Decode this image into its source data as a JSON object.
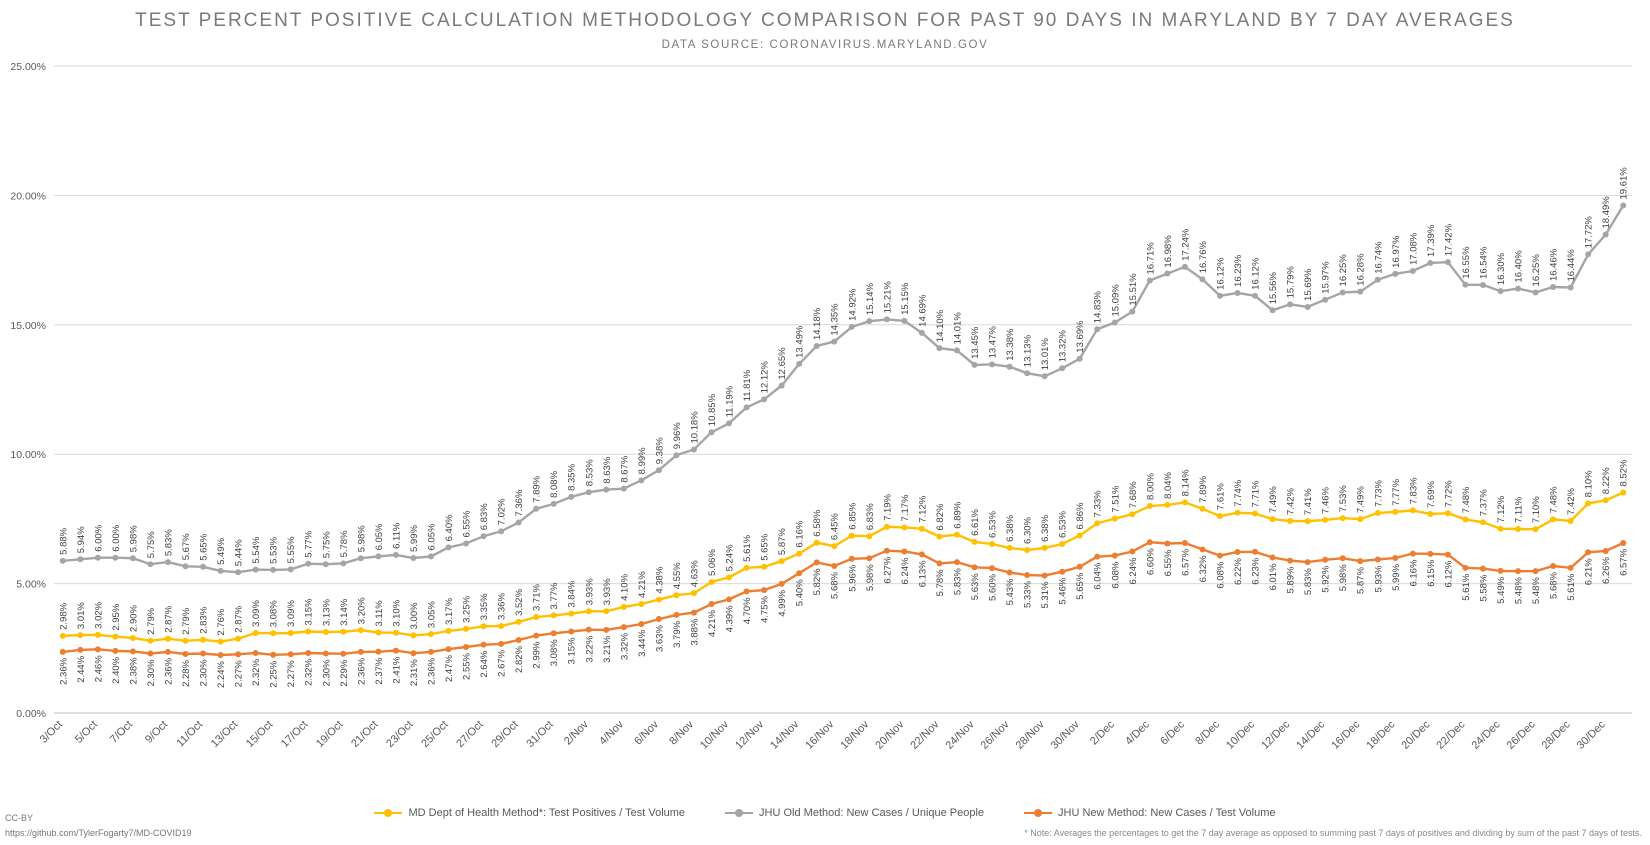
{
  "title": "TEST PERCENT POSITIVE CALCULATION METHODOLOGY COMPARISON FOR PAST 90 DAYS IN MARYLAND BY 7 DAY AVERAGES",
  "subtitle": "DATA SOURCE: CORONAVIRUS.MARYLAND.GOV",
  "cc_label": "CC-BY",
  "source_link": "https://github.com/TylerFogarty7/MD-COVID19",
  "footnote": "* Note: Averages the percentages to get the 7 day average as opposed to summing past 7 days of positives and dividing by sum of the past 7 days of tests.",
  "chart_data": {
    "type": "line",
    "title": "TEST PERCENT POSITIVE CALCULATION METHODOLOGY COMPARISON FOR PAST 90 DAYS IN MARYLAND BY 7 DAY AVERAGES",
    "ylim": [
      0,
      25
    ],
    "yticks": [
      "0.00%",
      "5.00%",
      "10.00%",
      "15.00%",
      "20.00%",
      "25.00%"
    ],
    "grid": true,
    "legend_position": "bottom",
    "x": [
      "3/Oct",
      "4/Oct",
      "5/Oct",
      "6/Oct",
      "7/Oct",
      "8/Oct",
      "9/Oct",
      "10/Oct",
      "11/Oct",
      "12/Oct",
      "13/Oct",
      "14/Oct",
      "15/Oct",
      "16/Oct",
      "17/Oct",
      "18/Oct",
      "19/Oct",
      "20/Oct",
      "21/Oct",
      "22/Oct",
      "23/Oct",
      "24/Oct",
      "25/Oct",
      "26/Oct",
      "27/Oct",
      "28/Oct",
      "29/Oct",
      "30/Oct",
      "31/Oct",
      "1/Nov",
      "2/Nov",
      "3/Nov",
      "4/Nov",
      "5/Nov",
      "6/Nov",
      "7/Nov",
      "8/Nov",
      "9/Nov",
      "10/Nov",
      "11/Nov",
      "12/Nov",
      "13/Nov",
      "14/Nov",
      "15/Nov",
      "16/Nov",
      "17/Nov",
      "18/Nov",
      "19/Nov",
      "20/Nov",
      "21/Nov",
      "22/Nov",
      "23/Nov",
      "24/Nov",
      "25/Nov",
      "26/Nov",
      "27/Nov",
      "28/Nov",
      "29/Nov",
      "30/Nov",
      "1/Dec",
      "2/Dec",
      "3/Dec",
      "4/Dec",
      "5/Dec",
      "6/Dec",
      "7/Dec",
      "8/Dec",
      "9/Dec",
      "10/Dec",
      "11/Dec",
      "12/Dec",
      "13/Dec",
      "14/Dec",
      "15/Dec",
      "16/Dec",
      "17/Dec",
      "18/Dec",
      "19/Dec",
      "20/Dec",
      "21/Dec",
      "22/Dec",
      "23/Dec",
      "24/Dec",
      "25/Dec",
      "26/Dec",
      "27/Dec",
      "28/Dec",
      "29/Dec",
      "30/Dec",
      "31/Dec"
    ],
    "xtick_labels": [
      "3/Oct",
      "5/Oct",
      "7/Oct",
      "9/Oct",
      "11/Oct",
      "13/Oct",
      "15/Oct",
      "17/Oct",
      "19/Oct",
      "21/Oct",
      "23/Oct",
      "25/Oct",
      "27/Oct",
      "29/Oct",
      "31/Oct",
      "2/Nov",
      "4/Nov",
      "6/Nov",
      "8/Nov",
      "10/Nov",
      "12/Nov",
      "14/Nov",
      "16/Nov",
      "18/Nov",
      "20/Nov",
      "22/Nov",
      "24/Nov",
      "26/Nov",
      "28/Nov",
      "30/Nov",
      "2/Dec",
      "4/Dec",
      "6/Dec",
      "8/Dec",
      "10/Dec",
      "12/Dec",
      "14/Dec",
      "16/Dec",
      "18/Dec",
      "20/Dec",
      "22/Dec",
      "24/Dec",
      "26/Dec",
      "28/Dec",
      "30/Dec"
    ],
    "series": [
      {
        "name": "MD Dept of Health Method*: Test Positives / Test Volume",
        "color": "#FFC000",
        "values": [
          2.98,
          3.01,
          3.02,
          2.95,
          2.9,
          2.79,
          2.87,
          2.79,
          2.83,
          2.76,
          2.87,
          3.09,
          3.08,
          3.09,
          3.15,
          3.13,
          3.14,
          3.2,
          3.11,
          3.1,
          3.0,
          3.05,
          3.17,
          3.25,
          3.35,
          3.36,
          3.52,
          3.71,
          3.77,
          3.84,
          3.93,
          3.93,
          4.1,
          4.21,
          4.38,
          4.55,
          4.63,
          5.06,
          5.24,
          5.61,
          5.65,
          5.87,
          6.16,
          6.58,
          6.45,
          6.85,
          6.83,
          7.19,
          7.17,
          7.12,
          6.82,
          6.89,
          6.61,
          6.53,
          6.38,
          6.3,
          6.38,
          6.53,
          6.86,
          7.33,
          7.51,
          7.68,
          8.0,
          8.04,
          8.14,
          7.89,
          7.61,
          7.74,
          7.71,
          7.49,
          7.42,
          7.41,
          7.46,
          7.53,
          7.49,
          7.73,
          7.77,
          7.83,
          7.69,
          7.72,
          7.48,
          7.37,
          7.12,
          7.11,
          7.1,
          7.48,
          7.42,
          8.1,
          8.22,
          8.52
        ]
      },
      {
        "name": "JHU Old Method: New Cases / Unique People",
        "color": "#A5A5A5",
        "values": [
          5.88,
          5.94,
          6.0,
          6.0,
          5.98,
          5.75,
          5.83,
          5.67,
          5.65,
          5.49,
          5.44,
          5.54,
          5.53,
          5.55,
          5.77,
          5.75,
          5.78,
          5.98,
          6.05,
          6.11,
          5.99,
          6.05,
          6.4,
          6.55,
          6.83,
          7.02,
          7.36,
          7.89,
          8.08,
          8.35,
          8.53,
          8.63,
          8.67,
          8.99,
          9.38,
          9.96,
          10.18,
          10.85,
          11.19,
          11.81,
          12.12,
          12.65,
          13.49,
          14.18,
          14.35,
          14.92,
          15.14,
          15.21,
          15.15,
          14.69,
          14.1,
          14.01,
          13.45,
          13.47,
          13.38,
          13.13,
          13.01,
          13.32,
          13.69,
          14.83,
          15.09,
          15.51,
          16.71,
          16.98,
          17.24,
          16.76,
          16.12,
          16.23,
          16.12,
          15.56,
          15.79,
          15.69,
          15.97,
          16.25,
          16.28,
          16.74,
          16.97,
          17.08,
          17.39,
          17.42,
          16.55,
          16.54,
          16.3,
          16.4,
          16.25,
          16.46,
          16.44,
          17.72,
          18.49,
          19.61
        ]
      },
      {
        "name": "JHU New Method: New Cases / Test Volume",
        "color": "#ED7D31",
        "values": [
          2.36,
          2.44,
          2.46,
          2.4,
          2.38,
          2.3,
          2.36,
          2.28,
          2.3,
          2.24,
          2.27,
          2.32,
          2.25,
          2.27,
          2.32,
          2.3,
          2.29,
          2.36,
          2.37,
          2.41,
          2.31,
          2.36,
          2.47,
          2.55,
          2.64,
          2.67,
          2.82,
          2.99,
          3.08,
          3.15,
          3.22,
          3.21,
          3.32,
          3.44,
          3.63,
          3.79,
          3.88,
          4.21,
          4.39,
          4.7,
          4.75,
          4.99,
          5.4,
          5.82,
          5.68,
          5.96,
          5.98,
          6.27,
          6.24,
          6.13,
          5.78,
          5.83,
          5.63,
          5.6,
          5.43,
          5.33,
          5.31,
          5.46,
          5.65,
          6.04,
          6.08,
          6.24,
          6.6,
          6.55,
          6.57,
          6.32,
          6.08,
          6.22,
          6.23,
          6.01,
          5.89,
          5.83,
          5.92,
          5.98,
          5.87,
          5.93,
          5.99,
          6.16,
          6.15,
          6.12,
          5.61,
          5.58,
          5.49,
          5.48,
          5.48,
          5.68,
          5.61,
          6.21,
          6.26,
          6.57
        ]
      }
    ]
  }
}
